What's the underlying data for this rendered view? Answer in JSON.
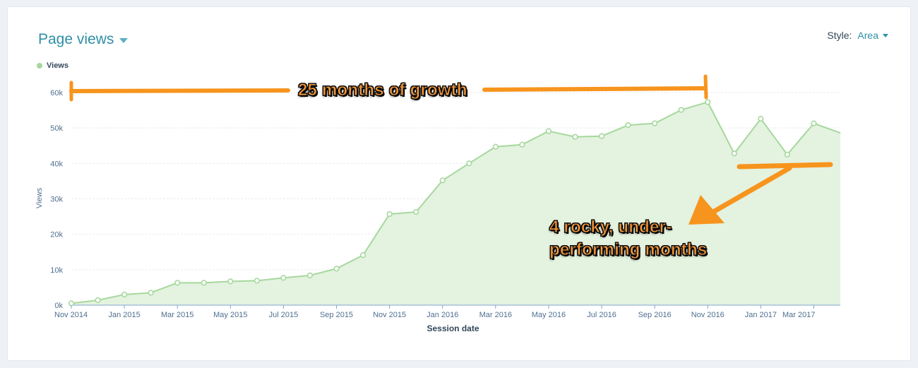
{
  "header": {
    "title": "Page views",
    "style_label": "Style:",
    "style_value": "Area"
  },
  "legend": {
    "label": "Views"
  },
  "annotations": {
    "growth": "25 months of growth",
    "rocky_line1": "4 rocky, under-",
    "rocky_line2": "performing months"
  },
  "colors": {
    "accent": "#2f8fa6",
    "series_line": "#a6d89d",
    "series_fill": "#e4f2e0",
    "annotation": "#f7941d"
  },
  "chart_data": {
    "type": "area",
    "xlabel": "Session date",
    "ylabel": "Views",
    "ylim": [
      0,
      60000
    ],
    "yticks": [
      "0k",
      "10k",
      "20k",
      "30k",
      "40k",
      "50k",
      "60k"
    ],
    "xtick_labels": [
      "Nov 2014",
      "Jan 2015",
      "Mar 2015",
      "May 2015",
      "Jul 2015",
      "Sep 2015",
      "Nov 2015",
      "Jan 2016",
      "Mar 2016",
      "May 2016",
      "Jul 2016",
      "Sep 2016",
      "Nov 2016",
      "Jan 2017",
      "Mar 2017"
    ],
    "x": [
      "2014-11",
      "2014-12",
      "2015-01",
      "2015-02",
      "2015-03",
      "2015-04",
      "2015-05",
      "2015-06",
      "2015-07",
      "2015-08",
      "2015-09",
      "2015-10",
      "2015-11",
      "2015-12",
      "2016-01",
      "2016-02",
      "2016-03",
      "2016-04",
      "2016-05",
      "2016-06",
      "2016-07",
      "2016-08",
      "2016-09",
      "2016-10",
      "2016-11",
      "2016-12",
      "2017-01",
      "2017-02",
      "2017-03",
      "2017-04"
    ],
    "series": [
      {
        "name": "Views",
        "values": [
          500,
          1400,
          3000,
          3500,
          6300,
          6300,
          6700,
          6900,
          7700,
          8400,
          10300,
          14100,
          25700,
          26300,
          35200,
          40000,
          44700,
          45300,
          49100,
          47500,
          47700,
          50800,
          51300,
          55100,
          57300,
          42800,
          52600,
          42500,
          51300,
          48600
        ]
      }
    ],
    "grid": true,
    "legend_position": "top-left"
  }
}
